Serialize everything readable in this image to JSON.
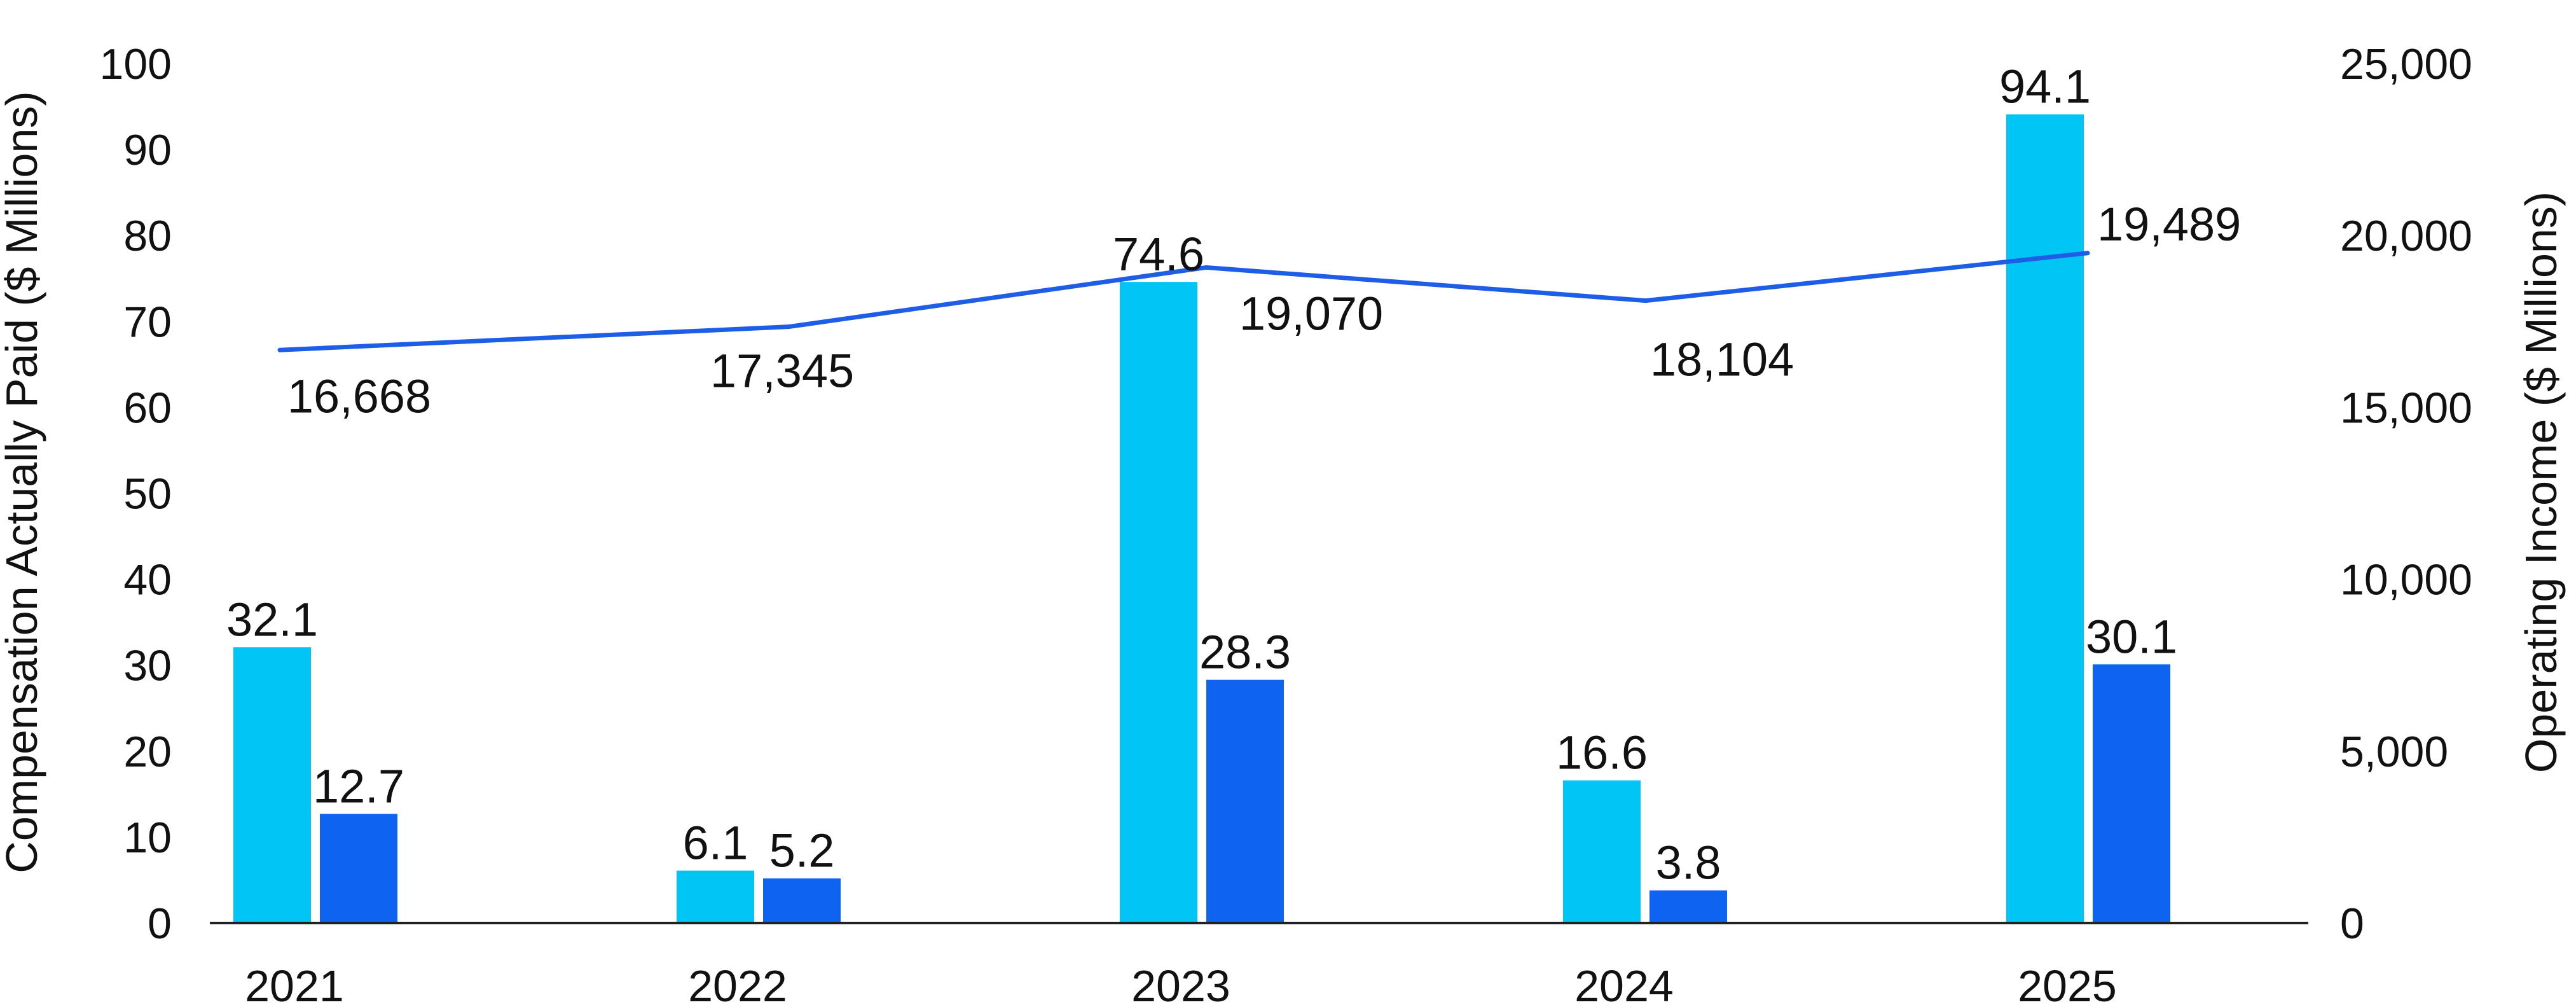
{
  "chart_data": {
    "type": "bar",
    "categories": [
      "2021",
      "2022",
      "2023",
      "2024",
      "2025"
    ],
    "series": [
      {
        "values": [
          32.1,
          6.1,
          74.6,
          16.6,
          94.1
        ],
        "color": "#00C5F5",
        "axis": "left"
      },
      {
        "values": [
          12.7,
          5.2,
          28.3,
          3.8,
          30.1
        ],
        "color": "#0E63F0",
        "axis": "left"
      },
      {
        "type": "line",
        "values": [
          16668,
          17345,
          19070,
          18104,
          19489
        ],
        "value_labels": [
          "16,668",
          "17,345",
          "19,070",
          "18,104",
          "19,489"
        ],
        "color": "#1E5EE6",
        "axis": "right"
      }
    ],
    "ylabel": "Compensation Actually Paid ($ Millions)",
    "y2label": "Operating Income ($ Millions)",
    "ylim": [
      0,
      100
    ],
    "y2lim": [
      0,
      25000
    ],
    "yticks": [
      "0",
      "10",
      "20",
      "30",
      "40",
      "50",
      "60",
      "70",
      "80",
      "90",
      "100"
    ],
    "y2ticks": [
      "0",
      "5,000",
      "10,000",
      "15,000",
      "20,000",
      "25,000"
    ],
    "grid": false,
    "legend": "none"
  }
}
